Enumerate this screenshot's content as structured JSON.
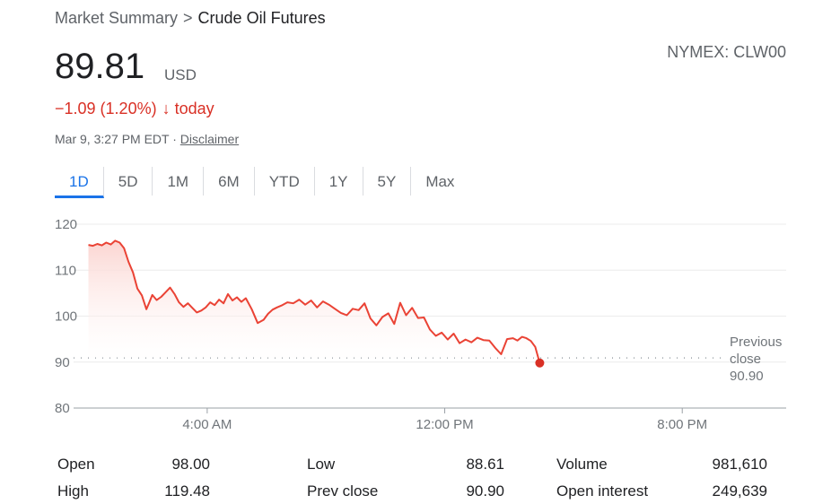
{
  "breadcrumb": {
    "parent": "Market Summary",
    "separator": ">",
    "current": "Crude Oil Futures"
  },
  "exchange": "NYMEX: CLW00",
  "quote": {
    "price": "89.81",
    "currency": "USD",
    "change": "−1.09 (1.20%)",
    "arrow": "↓",
    "period": "today",
    "timestamp": "Mar 9, 3:27 PM EDT",
    "bullet": "·",
    "disclaimer": "Disclaimer"
  },
  "tabs": [
    "1D",
    "5D",
    "1M",
    "6M",
    "YTD",
    "1Y",
    "5Y",
    "Max"
  ],
  "active_tab": "1D",
  "colors": {
    "line": "#ea4335",
    "fill_top": "#fbd3cf",
    "accent": "#1a73e8",
    "down": "#d93025"
  },
  "chart_data": {
    "type": "area",
    "ylim": [
      80,
      120
    ],
    "yticks": [
      120,
      110,
      100,
      90,
      80
    ],
    "xlim": [
      -0.5,
      23.5
    ],
    "xticks": [
      {
        "value": 4,
        "label": "4:00 AM"
      },
      {
        "value": 12,
        "label": "12:00 PM"
      },
      {
        "value": 20,
        "label": "8:00 PM"
      }
    ],
    "previous_close": {
      "value": 90.9,
      "label_line1": "Previous",
      "label_line2": "close",
      "label_value": "90.90"
    },
    "series": [
      {
        "x": [
          0,
          0.15,
          0.3,
          0.45,
          0.6,
          0.75,
          0.9,
          1.05,
          1.2,
          1.35,
          1.5,
          1.65,
          1.8,
          1.95,
          2.05,
          2.15,
          2.3,
          2.45,
          2.6,
          2.75,
          2.9,
          3.05,
          3.2,
          3.35,
          3.5,
          3.65,
          3.8,
          3.95,
          4.1,
          4.25,
          4.4,
          4.55,
          4.7,
          4.85,
          5.0,
          5.15,
          5.3,
          5.5,
          5.7,
          5.9,
          6.05,
          6.2,
          6.35,
          6.5,
          6.7,
          6.9,
          7.1,
          7.3,
          7.5,
          7.7,
          7.9,
          8.1,
          8.3,
          8.5,
          8.7,
          8.9,
          9.1,
          9.3,
          9.5,
          9.7,
          9.9,
          10.1,
          10.3,
          10.5,
          10.7,
          10.9,
          11.1,
          11.3,
          11.5,
          11.7,
          11.9,
          12.1,
          12.3,
          12.5,
          12.7,
          12.9,
          13.1,
          13.3,
          13.5,
          13.7,
          13.9,
          14.1,
          14.3,
          14.45,
          14.6,
          14.75,
          14.9,
          15.05,
          15.1,
          15.2
        ],
        "y": [
          115.5,
          115.3,
          115.7,
          115.4,
          116.0,
          115.6,
          116.4,
          116.0,
          114.8,
          111.8,
          109.5,
          106.0,
          104.5,
          101.5,
          103.0,
          104.6,
          103.5,
          104.2,
          105.2,
          106.2,
          104.8,
          103.0,
          102.0,
          102.8,
          101.8,
          100.8,
          101.2,
          101.9,
          103.0,
          102.4,
          103.6,
          102.8,
          104.8,
          103.4,
          104.1,
          103.1,
          103.9,
          101.5,
          98.5,
          99.2,
          100.5,
          101.4,
          101.9,
          102.3,
          103.0,
          102.8,
          103.6,
          102.5,
          103.4,
          101.9,
          103.2,
          102.5,
          101.6,
          100.7,
          100.2,
          101.6,
          101.3,
          102.8,
          99.5,
          98.0,
          99.8,
          100.6,
          98.3,
          102.9,
          100.2,
          101.8,
          99.6,
          99.7,
          97.1,
          95.7,
          96.4,
          94.9,
          96.2,
          94.1,
          94.9,
          94.3,
          95.3,
          94.8,
          94.7,
          93.1,
          91.7,
          95.0,
          95.2,
          94.7,
          95.5,
          95.2,
          94.6,
          93.3,
          92.1,
          89.81
        ]
      }
    ]
  },
  "stats": [
    {
      "label": "Open",
      "value": "98.00"
    },
    {
      "label": "High",
      "value": "119.48"
    },
    {
      "label": "Low",
      "value": "88.61"
    },
    {
      "label": "Prev close",
      "value": "90.90"
    },
    {
      "label": "Volume",
      "value": "981,610"
    },
    {
      "label": "Open interest",
      "value": "249,639"
    }
  ]
}
